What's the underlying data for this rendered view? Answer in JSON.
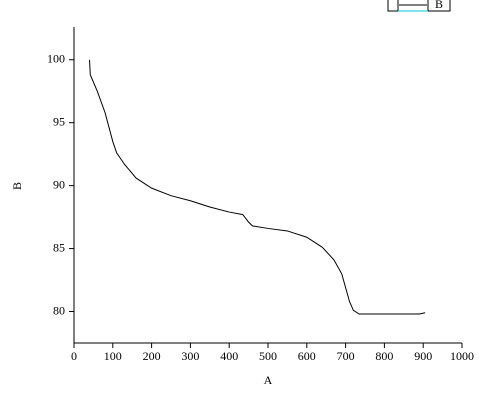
{
  "chart_data": {
    "type": "line",
    "x_label": "A",
    "y_label": "B",
    "x": [
      40,
      42,
      60,
      80,
      100,
      110,
      130,
      160,
      200,
      250,
      300,
      350,
      400,
      435,
      450,
      460,
      500,
      550,
      600,
      640,
      670,
      690,
      700,
      710,
      720,
      735,
      800,
      890,
      905
    ],
    "series": [
      {
        "name": "B",
        "color": "#000000",
        "values": [
          100,
          98.8,
          97.5,
          95.8,
          93.5,
          92.6,
          91.7,
          90.6,
          89.8,
          89.2,
          88.8,
          88.3,
          87.9,
          87.7,
          87.1,
          86.8,
          86.6,
          86.4,
          85.9,
          85.1,
          84.1,
          83,
          81.9,
          80.8,
          80.1,
          79.8,
          79.8,
          79.8,
          79.9
        ]
      }
    ],
    "xlim": [
      0,
      1000
    ],
    "xticks": [
      0,
      100,
      200,
      300,
      400,
      500,
      600,
      700,
      800,
      900,
      1000
    ],
    "ylim": [
      77.5,
      102.6
    ],
    "yticks": [
      80,
      85,
      90,
      95,
      100
    ],
    "grid": false
  }
}
